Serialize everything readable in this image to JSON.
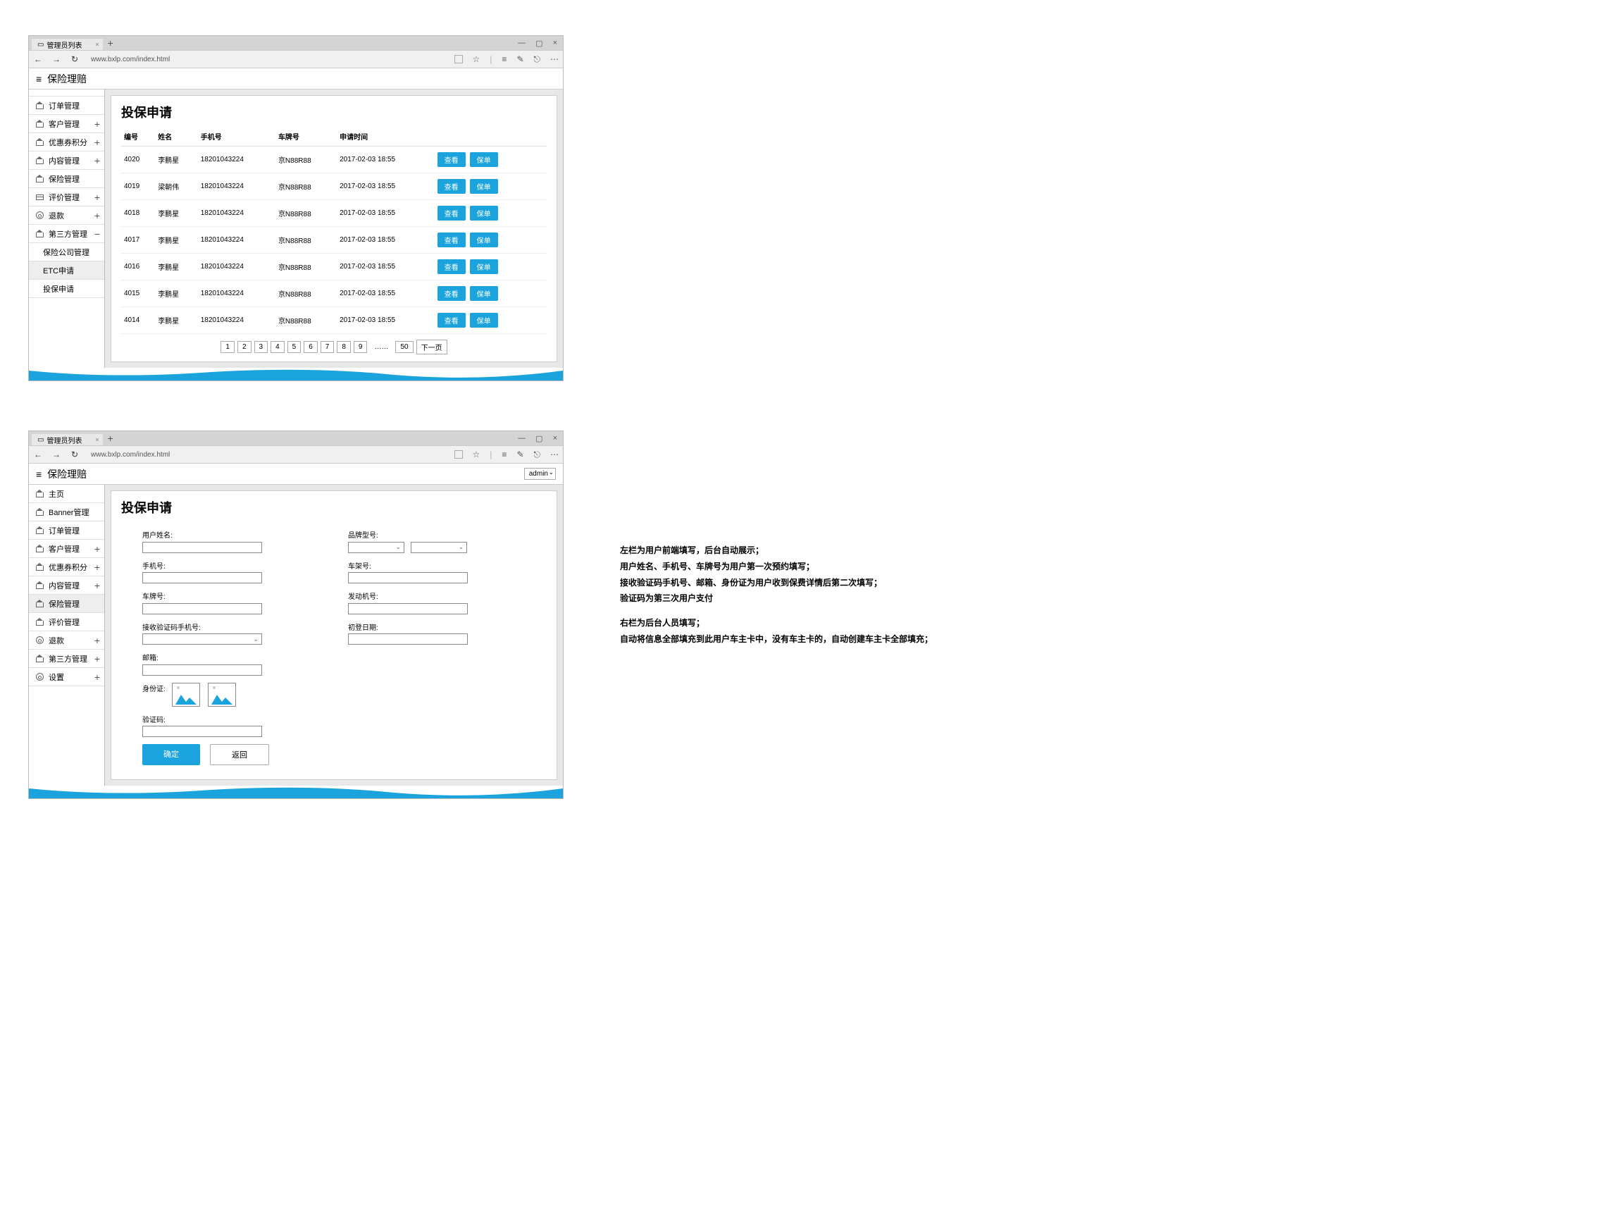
{
  "colors": {
    "accent": "#1aa3dd",
    "border": "#cccccc",
    "grayBg": "#e8e8e8",
    "tabBar": "#d4d4d4",
    "addrBar": "#f0f0f0"
  },
  "browser": {
    "tabTitle": "管理员列表",
    "url": "www.bxlp.com/index.html"
  },
  "app": {
    "title": "保险理赔",
    "adminLabel": "admin"
  },
  "sidebar1": {
    "truncated": "Banner 管理",
    "items": [
      {
        "label": "订单管理",
        "icon": "house",
        "expand": ""
      },
      {
        "label": "客户管理",
        "icon": "house",
        "expand": "+"
      },
      {
        "label": "优惠券积分",
        "icon": "house",
        "expand": "+"
      },
      {
        "label": "内容管理",
        "icon": "house",
        "expand": "+"
      },
      {
        "label": "保险管理",
        "icon": "house",
        "expand": ""
      },
      {
        "label": "评价管理",
        "icon": "card",
        "expand": "+"
      },
      {
        "label": "退款",
        "icon": "gear",
        "expand": "+"
      },
      {
        "label": "第三方管理",
        "icon": "house",
        "expand": "−"
      }
    ],
    "subs": [
      {
        "label": "保险公司管理",
        "active": false
      },
      {
        "label": "ETC申请",
        "active": true
      },
      {
        "label": "投保申请",
        "active": false
      }
    ]
  },
  "sidebar2": {
    "items": [
      {
        "label": "主页",
        "icon": "house",
        "expand": ""
      },
      {
        "label": "Banner管理",
        "icon": "house",
        "expand": ""
      },
      {
        "label": "订单管理",
        "icon": "house",
        "expand": ""
      },
      {
        "label": "客户管理",
        "icon": "house",
        "expand": "+"
      },
      {
        "label": "优惠券积分",
        "icon": "house",
        "expand": "+"
      },
      {
        "label": "内容管理",
        "icon": "house",
        "expand": "+"
      },
      {
        "label": "保险管理",
        "icon": "house",
        "expand": "",
        "active": true
      },
      {
        "label": "评价管理",
        "icon": "house",
        "expand": ""
      },
      {
        "label": "退款",
        "icon": "gear",
        "expand": "+"
      },
      {
        "label": "第三方管理",
        "icon": "house",
        "expand": "+"
      },
      {
        "label": "设置",
        "icon": "gear",
        "expand": "+"
      }
    ]
  },
  "listPage": {
    "title": "投保申请",
    "columns": [
      "编号",
      "姓名",
      "手机号",
      "车牌号",
      "申请时间",
      ""
    ],
    "rows": [
      {
        "id": "4020",
        "name": "李鹏星",
        "phone": "18201043224",
        "plate": "京N88R88",
        "time": "2017-02-03 18:55"
      },
      {
        "id": "4019",
        "name": "梁朝伟",
        "phone": "18201043224",
        "plate": "京N88R88",
        "time": "2017-02-03 18:55"
      },
      {
        "id": "4018",
        "name": "李鹏星",
        "phone": "18201043224",
        "plate": "京N88R88",
        "time": "2017-02-03 18:55"
      },
      {
        "id": "4017",
        "name": "李鹏星",
        "phone": "18201043224",
        "plate": "京N88R88",
        "time": "2017-02-03 18:55"
      },
      {
        "id": "4016",
        "name": "李鹏星",
        "phone": "18201043224",
        "plate": "京N88R88",
        "time": "2017-02-03 18:55"
      },
      {
        "id": "4015",
        "name": "李鹏星",
        "phone": "18201043224",
        "plate": "京N88R88",
        "time": "2017-02-03 18:55"
      },
      {
        "id": "4014",
        "name": "李鹏星",
        "phone": "18201043224",
        "plate": "京N88R88",
        "time": "2017-02-03 18:55"
      }
    ],
    "rowActions": {
      "view": "查看",
      "policy": "保单"
    },
    "pager": {
      "pages": [
        "1",
        "2",
        "3",
        "4",
        "5",
        "6",
        "7",
        "8",
        "9"
      ],
      "last": "50",
      "next": "下一页"
    }
  },
  "formPage": {
    "title": "投保申请",
    "left": {
      "userName": "用户姓名:",
      "phone": "手机号:",
      "plate": "车牌号:",
      "verifyPhone": "接收验证码手机号:",
      "email": "邮箱:",
      "idCard": "身份证:",
      "code": "验证码:"
    },
    "right": {
      "brandModel": "品牌型号:",
      "vin": "车架号:",
      "engine": "发动机号:",
      "firstReg": "初登日期:"
    },
    "buttons": {
      "ok": "确定",
      "back": "返回"
    }
  },
  "annotations": [
    "左栏为用户前端填写，后台自动展示；",
    "用户姓名、手机号、车牌号为用户第一次预约填写；",
    "接收验证码手机号、邮箱、身份证为用户收到保费详情后第二次填写；",
    "验证码为第三次用户支付",
    "",
    "右栏为后台人员填写；",
    "自动将信息全部填充到此用户车主卡中，没有车主卡的，自动创建车主卡全部填充；"
  ]
}
